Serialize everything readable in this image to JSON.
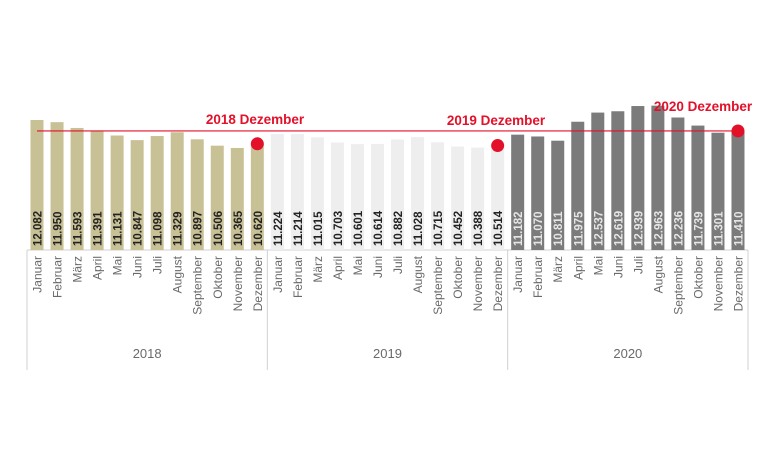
{
  "chart_data": {
    "type": "bar",
    "title": "",
    "xlabel": "",
    "ylabel": "",
    "ylim": [
      4100,
      13000
    ],
    "grid": false,
    "legend": "none",
    "months": [
      "Januar",
      "Februar",
      "März",
      "April",
      "Mai",
      "Juni",
      "Juli",
      "August",
      "September",
      "Oktober",
      "November",
      "Dezember"
    ],
    "series": [
      {
        "year": "2018",
        "color": "#c9c196",
        "label_color": "#222222",
        "values": [
          12082,
          11950,
          11593,
          11391,
          11131,
          10847,
          11098,
          11329,
          10897,
          10506,
          10365,
          10620
        ],
        "labels": [
          "12.082",
          "11.950",
          "11.593",
          "11.391",
          "11.131",
          "10.847",
          "11.098",
          "11.329",
          "10.897",
          "10.506",
          "10.365",
          "10.620"
        ]
      },
      {
        "year": "2019",
        "color": "#eeeeee",
        "label_color": "#222222",
        "values": [
          11224,
          11214,
          11015,
          10703,
          10601,
          10614,
          10882,
          11028,
          10715,
          10452,
          10388,
          10514
        ],
        "labels": [
          "11.224",
          "11.214",
          "11.015",
          "10.703",
          "10.601",
          "10.614",
          "10.882",
          "11.028",
          "10.715",
          "10.452",
          "10.388",
          "10.514"
        ]
      },
      {
        "year": "2020",
        "color": "#7b7b7b",
        "label_color": "#e6e6e6",
        "values": [
          11182,
          11070,
          10811,
          11975,
          12537,
          12619,
          12939,
          12963,
          12236,
          11739,
          11301,
          11410
        ],
        "labels": [
          "11.182",
          "11.070",
          "10.811",
          "11.975",
          "12.537",
          "12.619",
          "12.939",
          "12.963",
          "12.236",
          "11.739",
          "11.301",
          "11.410"
        ]
      }
    ],
    "reference_line": {
      "value": 11410,
      "color": "#e3102a"
    },
    "annotations": [
      {
        "text": "2018 Dezember",
        "year": "2018",
        "month": "Dezember",
        "value": 10620
      },
      {
        "text": "2019 Dezember",
        "year": "2019",
        "month": "Dezember",
        "value": 10514
      },
      {
        "text": "2020 Dezember",
        "year": "2020",
        "month": "Dezember",
        "value": 11410
      }
    ],
    "accent_color": "#e3102a"
  }
}
